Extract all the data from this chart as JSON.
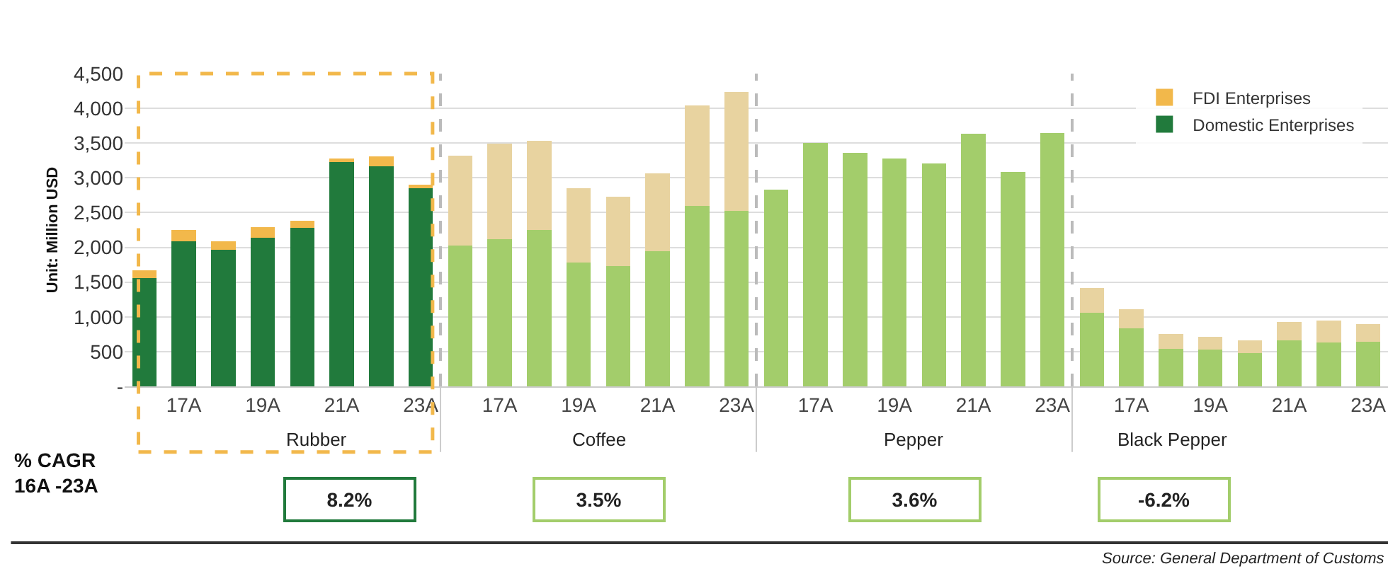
{
  "chart_data": {
    "type": "bar",
    "stacked": true,
    "ylabel": "Unit: Million USD",
    "categories": [
      null,
      "17A",
      null,
      "19A",
      null,
      "21A",
      null,
      "23A",
      null,
      "17A",
      null,
      "19A",
      null,
      "21A",
      null,
      "23A",
      null,
      "17A",
      null,
      "19A",
      null,
      "21A",
      null,
      "23A",
      null,
      "17A",
      null,
      "19A",
      null,
      "21A",
      null,
      "23A"
    ],
    "series": [
      {
        "name": "Domestic Enterprises",
        "colors": [
          "#217a3c",
          "#217a3c",
          "#217a3c",
          "#217a3c",
          "#217a3c",
          "#217a3c",
          "#217a3c",
          "#217a3c",
          "#a3cd6b",
          "#a3cd6b",
          "#a3cd6b",
          "#a3cd6b",
          "#a3cd6b",
          "#a3cd6b",
          "#a3cd6b",
          "#a3cd6b",
          "#a3cd6b",
          "#a3cd6b",
          "#a3cd6b",
          "#a3cd6b",
          "#a3cd6b",
          "#a3cd6b",
          "#a3cd6b",
          "#a3cd6b",
          "#a3cd6b",
          "#a3cd6b",
          "#a3cd6b",
          "#a3cd6b",
          "#a3cd6b",
          "#a3cd6b",
          "#a3cd6b",
          "#a3cd6b"
        ],
        "values": [
          1560,
          2090,
          1960,
          2140,
          2280,
          3230,
          3170,
          2860,
          2030,
          2120,
          2250,
          1780,
          1730,
          1940,
          2600,
          2530,
          2830,
          3500,
          3360,
          3280,
          3210,
          3630,
          3080,
          3640,
          1060,
          830,
          540,
          530,
          480,
          660,
          630,
          640
        ]
      },
      {
        "name": "FDI Enterprises",
        "colors": [
          "#f2b84b",
          "#f2b84b",
          "#f2b84b",
          "#f2b84b",
          "#f2b84b",
          "#f2b84b",
          "#f2b84b",
          "#f2b84b",
          "#e8d3a0",
          "#e8d3a0",
          "#e8d3a0",
          "#e8d3a0",
          "#e8d3a0",
          "#e8d3a0",
          "#e8d3a0",
          "#e8d3a0",
          "#e8d3a0",
          "#e8d3a0",
          "#e8d3a0",
          "#e8d3a0",
          "#e8d3a0",
          "#e8d3a0",
          "#e8d3a0",
          "#e8d3a0",
          "#e8d3a0",
          "#e8d3a0",
          "#e8d3a0",
          "#e8d3a0",
          "#e8d3a0",
          "#e8d3a0",
          "#e8d3a0",
          "#e8d3a0"
        ],
        "values": [
          110,
          160,
          130,
          150,
          100,
          50,
          140,
          40,
          1290,
          1370,
          1280,
          1070,
          1000,
          1120,
          1440,
          1710,
          0,
          0,
          0,
          0,
          0,
          0,
          0,
          0,
          360,
          280,
          210,
          180,
          180,
          270,
          320,
          260
        ]
      }
    ],
    "ylim": [
      0,
      4500
    ],
    "yticks": [
      {
        "value": 0,
        "label": "-"
      },
      {
        "value": 500,
        "label": "500"
      },
      {
        "value": 1000,
        "label": "1,000"
      },
      {
        "value": 1500,
        "label": "1,500"
      },
      {
        "value": 2000,
        "label": "2,000"
      },
      {
        "value": 2500,
        "label": "2,500"
      },
      {
        "value": 3000,
        "label": "3,000"
      },
      {
        "value": 3500,
        "label": "3,500"
      },
      {
        "value": 4000,
        "label": "4,000"
      },
      {
        "value": 4500,
        "label": "4,500"
      }
    ],
    "grid": "y",
    "legend": "top right",
    "annotations": [
      "Rubber",
      "Coffee",
      "Pepper",
      "Black Pepper",
      "% CAGR\n16A -23A",
      "8.2%",
      "3.5%",
      "3.6%",
      "-6.2%",
      "Source: General Department of Customs"
    ]
  }
}
